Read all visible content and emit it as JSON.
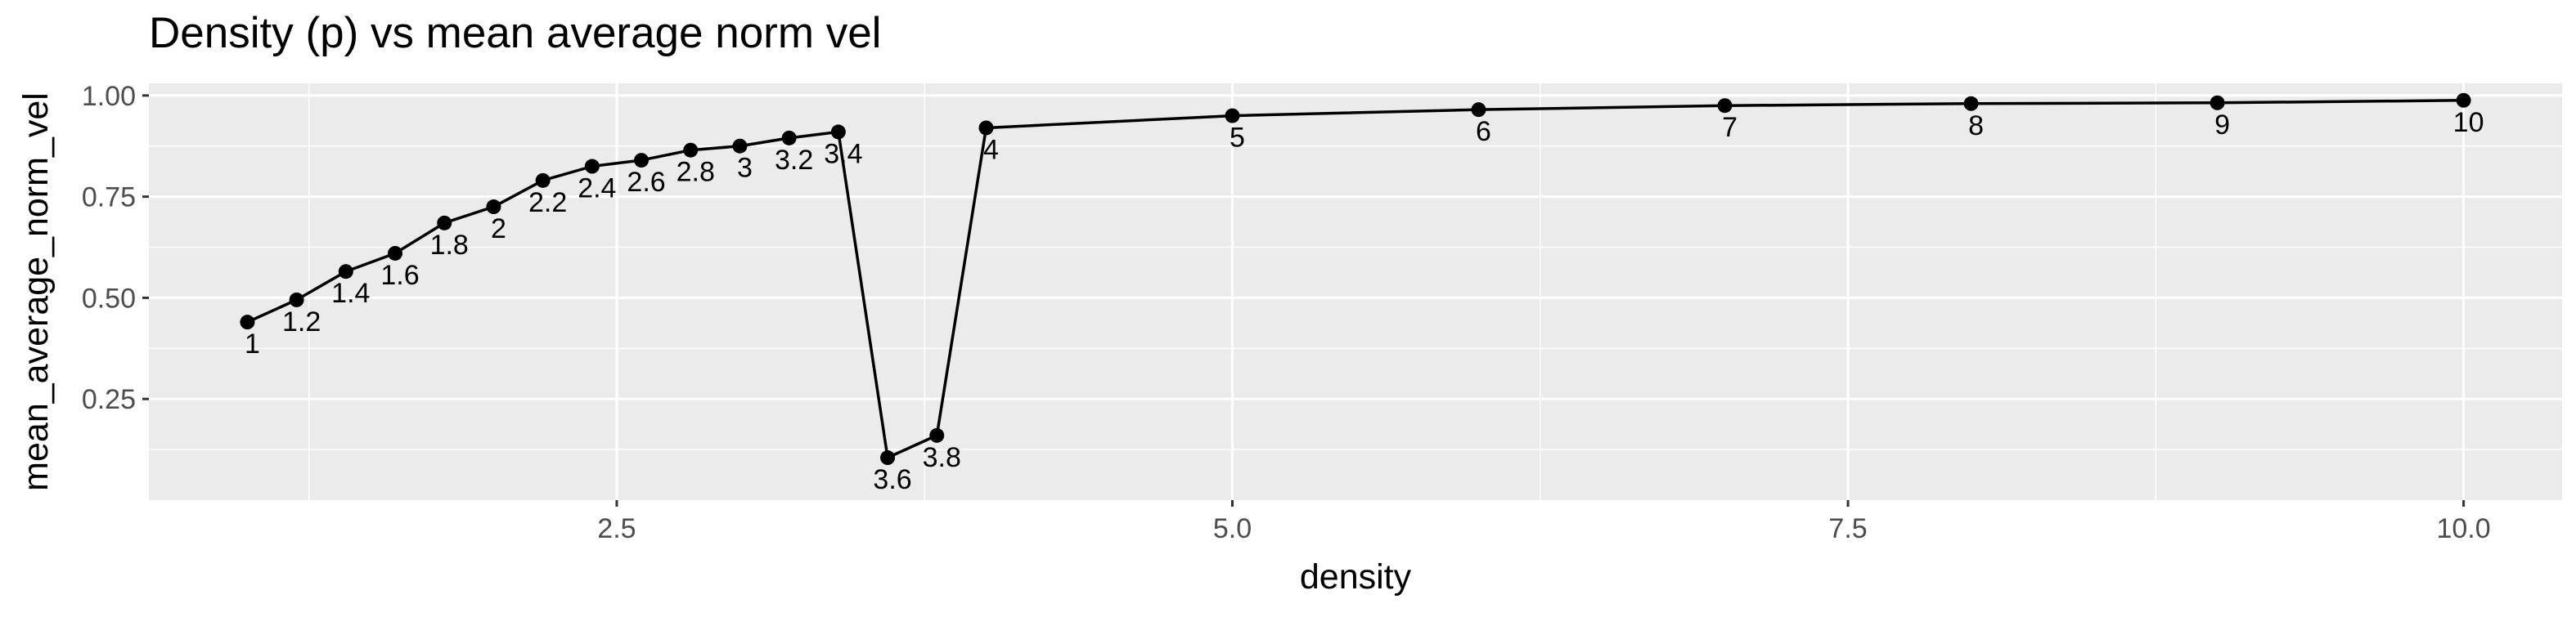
{
  "chart_data": {
    "type": "line",
    "title": "Density (p) vs mean average norm vel",
    "xlabel": "density",
    "ylabel": "mean_average_norm_vel",
    "xlim": [
      0.6,
      10.4
    ],
    "ylim": [
      0.0,
      1.03
    ],
    "x_ticks": [
      2.5,
      5.0,
      7.5,
      10.0
    ],
    "x_tick_labels": [
      "2.5",
      "5.0",
      "7.5",
      "10.0"
    ],
    "y_ticks": [
      0.25,
      0.5,
      0.75,
      1.0
    ],
    "y_tick_labels": [
      "0.25",
      "0.50",
      "0.75",
      "1.00"
    ],
    "grid": true,
    "legend": "none",
    "colors": {
      "panel": "#ebebeb",
      "grid": "#ffffff",
      "line": "#000000",
      "tick_text": "#4d4d4d"
    },
    "points": [
      {
        "x": 1.0,
        "y": 0.44,
        "label": "1"
      },
      {
        "x": 1.2,
        "y": 0.495,
        "label": "1.2"
      },
      {
        "x": 1.4,
        "y": 0.565,
        "label": "1.4"
      },
      {
        "x": 1.6,
        "y": 0.61,
        "label": "1.6"
      },
      {
        "x": 1.8,
        "y": 0.685,
        "label": "1.8"
      },
      {
        "x": 2.0,
        "y": 0.725,
        "label": "2"
      },
      {
        "x": 2.2,
        "y": 0.79,
        "label": "2.2"
      },
      {
        "x": 2.4,
        "y": 0.825,
        "label": "2.4"
      },
      {
        "x": 2.6,
        "y": 0.84,
        "label": "2.6"
      },
      {
        "x": 2.8,
        "y": 0.865,
        "label": "2.8"
      },
      {
        "x": 3.0,
        "y": 0.875,
        "label": "3"
      },
      {
        "x": 3.2,
        "y": 0.895,
        "label": "3.2"
      },
      {
        "x": 3.4,
        "y": 0.91,
        "label": "3.4"
      },
      {
        "x": 3.6,
        "y": 0.105,
        "label": "3.6"
      },
      {
        "x": 3.8,
        "y": 0.16,
        "label": "3.8"
      },
      {
        "x": 4.0,
        "y": 0.92,
        "label": "4"
      },
      {
        "x": 5.0,
        "y": 0.95,
        "label": "5"
      },
      {
        "x": 6.0,
        "y": 0.965,
        "label": "6"
      },
      {
        "x": 7.0,
        "y": 0.975,
        "label": "7"
      },
      {
        "x": 8.0,
        "y": 0.98,
        "label": "8"
      },
      {
        "x": 9.0,
        "y": 0.982,
        "label": "9"
      },
      {
        "x": 10.0,
        "y": 0.988,
        "label": "10"
      }
    ]
  }
}
